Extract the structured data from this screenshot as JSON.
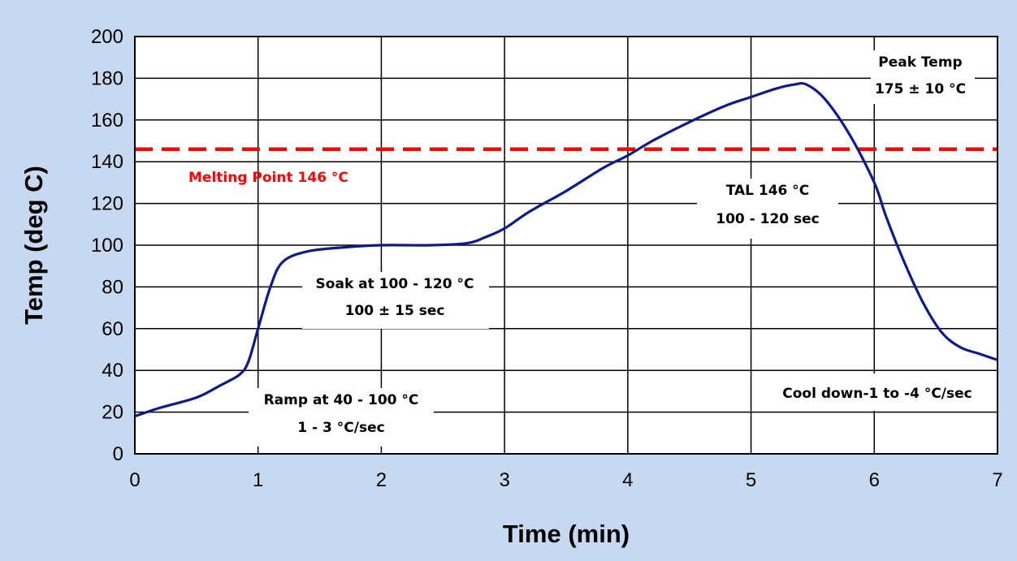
{
  "chart_data": {
    "type": "line",
    "title": "",
    "xlabel": "Time (min)",
    "ylabel": "Temp (deg C)",
    "xlim": [
      0,
      7
    ],
    "ylim": [
      0,
      200
    ],
    "xticks": [
      "0",
      "1",
      "2",
      "3",
      "4",
      "5",
      "6",
      "7"
    ],
    "yticks": [
      "0",
      "20",
      "40",
      "60",
      "80",
      "100",
      "120",
      "140",
      "160",
      "180",
      "200"
    ],
    "grid": true,
    "series": [
      {
        "color": "#0d1a8c",
        "x": [
          0,
          0.2,
          0.5,
          0.7,
          0.85,
          0.92,
          1.0,
          1.1,
          1.2,
          1.4,
          1.7,
          2.0,
          2.4,
          2.7,
          2.85,
          3.0,
          3.2,
          3.5,
          3.8,
          4.0,
          4.2,
          4.5,
          4.8,
          5.0,
          5.2,
          5.35,
          5.45,
          5.6,
          5.8,
          6.0,
          6.1,
          6.25,
          6.4,
          6.55,
          6.7,
          6.85,
          7.0
        ],
        "y": [
          18,
          22,
          27,
          33,
          38,
          44,
          60,
          80,
          92,
          97,
          99,
          100,
          100,
          101,
          104,
          108,
          116,
          126,
          137,
          143,
          150,
          159,
          167,
          171,
          175,
          177,
          177,
          170,
          153,
          130,
          113,
          91,
          72,
          58,
          51,
          48,
          45
        ]
      }
    ],
    "reference_line": {
      "y": 146,
      "color": "#ff0000",
      "style": "dashed"
    },
    "annotations": {
      "melting": "Melting Point 146 °C",
      "peak_line1": "Peak Temp",
      "peak_line2": "175 ± 10 °C",
      "tal_line1": "TAL 146 °C",
      "tal_line2": "100 - 120 sec",
      "soak_line1": "Soak at 100 - 120 °C",
      "soak_line2": "100 ± 15 sec",
      "ramp_line1": "Ramp at 40 - 100 °C",
      "ramp_line2": "1 - 3 °C/sec",
      "cool": "Cool down-1 to -4 °C/sec"
    },
    "colors": {
      "background": "#c6d9f0",
      "plot_area": "#ffffff",
      "melting_text": "#ff0000"
    }
  }
}
